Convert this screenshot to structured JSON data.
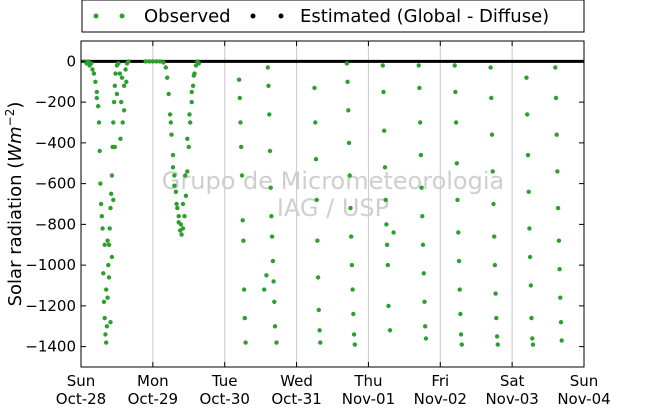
{
  "chart_data": {
    "type": "scatter",
    "title": "",
    "xlabel": "",
    "ylabel": "Solar radiation (Wm^-2)",
    "ylabel_prefix": "Solar radiation (",
    "ylabel_unit_base": "Wm",
    "ylabel_unit_exp": "−2",
    "ylabel_suffix": ")",
    "xlim": [
      0,
      7
    ],
    "ylim": [
      -1500,
      100
    ],
    "yticks": [
      0,
      -200,
      -400,
      -600,
      -800,
      -1000,
      -1200,
      -1400
    ],
    "ytick_labels": [
      "0",
      "−200",
      "−400",
      "−600",
      "−800",
      "−1000",
      "−1200",
      "−1400"
    ],
    "xticks": [
      {
        "day": "Sun",
        "date": "Oct-28"
      },
      {
        "day": "Mon",
        "date": "Oct-29"
      },
      {
        "day": "Tue",
        "date": "Oct-30"
      },
      {
        "day": "Wed",
        "date": "Oct-31"
      },
      {
        "day": "Thu",
        "date": "Nov-01"
      },
      {
        "day": "Fri",
        "date": "Nov-02"
      },
      {
        "day": "Sat",
        "date": "Nov-03"
      },
      {
        "day": "Sun",
        "date": "Nov-04"
      }
    ],
    "grid": "vertical",
    "legend_position": "top",
    "legend": [
      {
        "label": "Observed",
        "color": "#2ca02c",
        "marker": "dot"
      },
      {
        "label": "Estimated (Global - Diffuse)",
        "color": "#000000",
        "marker": "dot"
      }
    ],
    "watermark": [
      "Grupo de Micrometeorologia",
      "IAG / USP"
    ],
    "series": [
      {
        "name": "Observed",
        "color": "#2ca02c",
        "points": [
          [
            0.05,
            0
          ],
          [
            0.08,
            -10
          ],
          [
            0.1,
            0
          ],
          [
            0.12,
            -20
          ],
          [
            0.14,
            -10
          ],
          [
            0.16,
            -40
          ],
          [
            0.18,
            -60
          ],
          [
            0.2,
            -100
          ],
          [
            0.22,
            -150
          ],
          [
            0.24,
            -220
          ],
          [
            0.25,
            -300
          ],
          [
            0.26,
            -440
          ],
          [
            0.27,
            -600
          ],
          [
            0.28,
            -700
          ],
          [
            0.3,
            -820
          ],
          [
            0.31,
            -1040
          ],
          [
            0.32,
            -1180
          ],
          [
            0.33,
            -1260
          ],
          [
            0.34,
            -1340
          ],
          [
            0.35,
            -1380
          ],
          [
            0.36,
            -1300
          ],
          [
            0.37,
            -1160
          ],
          [
            0.38,
            -1000
          ],
          [
            0.39,
            -900
          ],
          [
            0.4,
            -820
          ],
          [
            0.41,
            -720
          ],
          [
            0.42,
            -650
          ],
          [
            0.43,
            -560
          ],
          [
            0.44,
            -420
          ],
          [
            0.45,
            -300
          ],
          [
            0.46,
            -200
          ],
          [
            0.47,
            -120
          ],
          [
            0.48,
            -60
          ],
          [
            0.5,
            -20
          ],
          [
            0.52,
            -10
          ],
          [
            0.54,
            -60
          ],
          [
            0.56,
            -200
          ],
          [
            0.58,
            -300
          ],
          [
            0.6,
            -120
          ],
          [
            0.62,
            -40
          ],
          [
            0.64,
            -10
          ],
          [
            0.66,
            0
          ],
          [
            0.22,
            -180
          ],
          [
            0.29,
            -760
          ],
          [
            0.33,
            -900
          ],
          [
            0.35,
            -1120
          ],
          [
            0.37,
            -880
          ],
          [
            0.39,
            -1060
          ],
          [
            0.41,
            -1280
          ],
          [
            0.43,
            -960
          ],
          [
            0.45,
            -680
          ],
          [
            0.47,
            -420
          ],
          [
            0.5,
            -160
          ],
          [
            0.55,
            -380
          ],
          [
            0.57,
            -80
          ],
          [
            0.6,
            -240
          ],
          [
            0.63,
            -100
          ],
          [
            0.9,
            0
          ],
          [
            0.95,
            0
          ],
          [
            1.0,
            0
          ],
          [
            1.05,
            0
          ],
          [
            1.1,
            0
          ],
          [
            1.15,
            -5
          ],
          [
            1.18,
            -30
          ],
          [
            1.2,
            -80
          ],
          [
            1.22,
            -160
          ],
          [
            1.24,
            -260
          ],
          [
            1.26,
            -360
          ],
          [
            1.28,
            -460
          ],
          [
            1.3,
            -560
          ],
          [
            1.32,
            -640
          ],
          [
            1.34,
            -720
          ],
          [
            1.36,
            -790
          ],
          [
            1.38,
            -830
          ],
          [
            1.4,
            -850
          ],
          [
            1.42,
            -820
          ],
          [
            1.44,
            -760
          ],
          [
            1.46,
            -660
          ],
          [
            1.48,
            -540
          ],
          [
            1.5,
            -420
          ],
          [
            1.52,
            -300
          ],
          [
            1.54,
            -200
          ],
          [
            1.56,
            -120
          ],
          [
            1.58,
            -60
          ],
          [
            1.6,
            -20
          ],
          [
            1.62,
            0
          ],
          [
            1.64,
            -10
          ],
          [
            1.25,
            -300
          ],
          [
            1.28,
            -520
          ],
          [
            1.3,
            -610
          ],
          [
            1.33,
            -700
          ],
          [
            1.36,
            -760
          ],
          [
            1.39,
            -800
          ],
          [
            1.42,
            -700
          ],
          [
            1.45,
            -560
          ],
          [
            1.48,
            -380
          ],
          [
            1.51,
            -260
          ],
          [
            1.54,
            -150
          ],
          [
            1.57,
            -70
          ],
          [
            2.2,
            -90
          ],
          [
            2.21,
            -180
          ],
          [
            2.22,
            -300
          ],
          [
            2.23,
            -420
          ],
          [
            2.24,
            -560
          ],
          [
            2.25,
            -780
          ],
          [
            2.26,
            -880
          ],
          [
            2.27,
            -1120
          ],
          [
            2.28,
            -1260
          ],
          [
            2.29,
            -1380
          ],
          [
            2.6,
            -30
          ],
          [
            2.61,
            -120
          ],
          [
            2.62,
            -260
          ],
          [
            2.63,
            -440
          ],
          [
            2.64,
            -620
          ],
          [
            2.65,
            -760
          ],
          [
            2.66,
            -860
          ],
          [
            2.67,
            -980
          ],
          [
            2.68,
            -1080
          ],
          [
            2.69,
            -1180
          ],
          [
            2.7,
            -1300
          ],
          [
            2.72,
            -1380
          ],
          [
            2.58,
            -1050
          ],
          [
            2.55,
            -1120
          ],
          [
            3.25,
            -130
          ],
          [
            3.26,
            -300
          ],
          [
            3.27,
            -480
          ],
          [
            3.28,
            -680
          ],
          [
            3.29,
            -880
          ],
          [
            3.3,
            -1060
          ],
          [
            3.31,
            -1220
          ],
          [
            3.32,
            -1320
          ],
          [
            3.33,
            -1380
          ],
          [
            3.7,
            -10
          ],
          [
            3.71,
            -100
          ],
          [
            3.72,
            -240
          ],
          [
            3.73,
            -400
          ],
          [
            3.74,
            -560
          ],
          [
            3.75,
            -720
          ],
          [
            3.76,
            -860
          ],
          [
            3.77,
            -1000
          ],
          [
            3.78,
            -1120
          ],
          [
            3.79,
            -1240
          ],
          [
            3.8,
            -1340
          ],
          [
            3.81,
            -1390
          ],
          [
            4.2,
            -20
          ],
          [
            4.21,
            -150
          ],
          [
            4.22,
            -340
          ],
          [
            4.23,
            -520
          ],
          [
            4.24,
            -680
          ],
          [
            4.25,
            -800
          ],
          [
            4.26,
            -900
          ],
          [
            4.27,
            -1000
          ],
          [
            4.28,
            -1200
          ],
          [
            4.3,
            -1320
          ],
          [
            4.35,
            -840
          ],
          [
            4.7,
            -20
          ],
          [
            4.71,
            -130
          ],
          [
            4.72,
            -300
          ],
          [
            4.73,
            -460
          ],
          [
            4.74,
            -620
          ],
          [
            4.75,
            -760
          ],
          [
            4.76,
            -900
          ],
          [
            4.77,
            -1040
          ],
          [
            4.78,
            -1180
          ],
          [
            4.79,
            -1300
          ],
          [
            4.8,
            -1360
          ],
          [
            5.2,
            -20
          ],
          [
            5.21,
            -150
          ],
          [
            5.22,
            -300
          ],
          [
            5.23,
            -500
          ],
          [
            5.24,
            -680
          ],
          [
            5.25,
            -840
          ],
          [
            5.26,
            -980
          ],
          [
            5.27,
            -1120
          ],
          [
            5.28,
            -1240
          ],
          [
            5.29,
            -1340
          ],
          [
            5.3,
            -1390
          ],
          [
            5.7,
            -30
          ],
          [
            5.71,
            -180
          ],
          [
            5.72,
            -360
          ],
          [
            5.73,
            -540
          ],
          [
            5.74,
            -700
          ],
          [
            5.75,
            -860
          ],
          [
            5.76,
            -1000
          ],
          [
            5.77,
            -1140
          ],
          [
            5.78,
            -1260
          ],
          [
            5.79,
            -1350
          ],
          [
            5.8,
            -1390
          ],
          [
            6.2,
            -80
          ],
          [
            6.21,
            -260
          ],
          [
            6.22,
            -460
          ],
          [
            6.23,
            -640
          ],
          [
            6.24,
            -820
          ],
          [
            6.25,
            -960
          ],
          [
            6.26,
            -1100
          ],
          [
            6.27,
            -1260
          ],
          [
            6.28,
            -1360
          ],
          [
            6.29,
            -1390
          ],
          [
            6.6,
            -30
          ],
          [
            6.61,
            -180
          ],
          [
            6.62,
            -360
          ],
          [
            6.63,
            -540
          ],
          [
            6.64,
            -720
          ],
          [
            6.65,
            -880
          ],
          [
            6.66,
            -1020
          ],
          [
            6.67,
            -1160
          ],
          [
            6.68,
            -1280
          ],
          [
            6.69,
            -1370
          ]
        ]
      },
      {
        "name": "Estimated (Global - Diffuse)",
        "color": "#000000",
        "points": [
          [
            0.0,
            0
          ],
          [
            0.5,
            0
          ],
          [
            1.0,
            0
          ],
          [
            1.5,
            0
          ],
          [
            2.0,
            0
          ],
          [
            2.5,
            0
          ],
          [
            3.0,
            0
          ],
          [
            3.5,
            0
          ],
          [
            4.0,
            0
          ],
          [
            4.5,
            0
          ],
          [
            5.0,
            0
          ],
          [
            5.5,
            0
          ],
          [
            6.0,
            0
          ],
          [
            6.5,
            0
          ],
          [
            7.0,
            0
          ]
        ]
      }
    ]
  }
}
